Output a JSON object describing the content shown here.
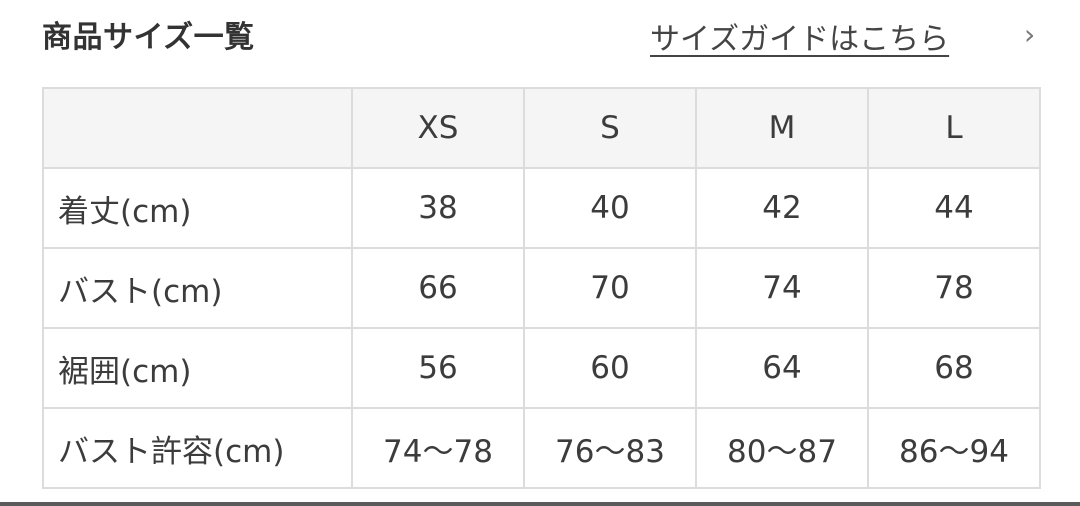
{
  "header": {
    "title": "商品サイズ一覧",
    "guide_link": "サイズガイドはこちら",
    "chevron_icon": "chevron-right-icon"
  },
  "table": {
    "columns": [
      "",
      "XS",
      "S",
      "M",
      "L"
    ],
    "rows": [
      {
        "label": "着丈(cm)",
        "values": [
          "38",
          "40",
          "42",
          "44"
        ]
      },
      {
        "label": "バスト(cm)",
        "values": [
          "66",
          "70",
          "74",
          "78"
        ]
      },
      {
        "label": "裾囲(cm)",
        "values": [
          "56",
          "60",
          "64",
          "68"
        ]
      },
      {
        "label": "バスト許容(cm)",
        "values": [
          "74〜78",
          "76〜83",
          "80〜87",
          "86〜94"
        ]
      }
    ]
  }
}
